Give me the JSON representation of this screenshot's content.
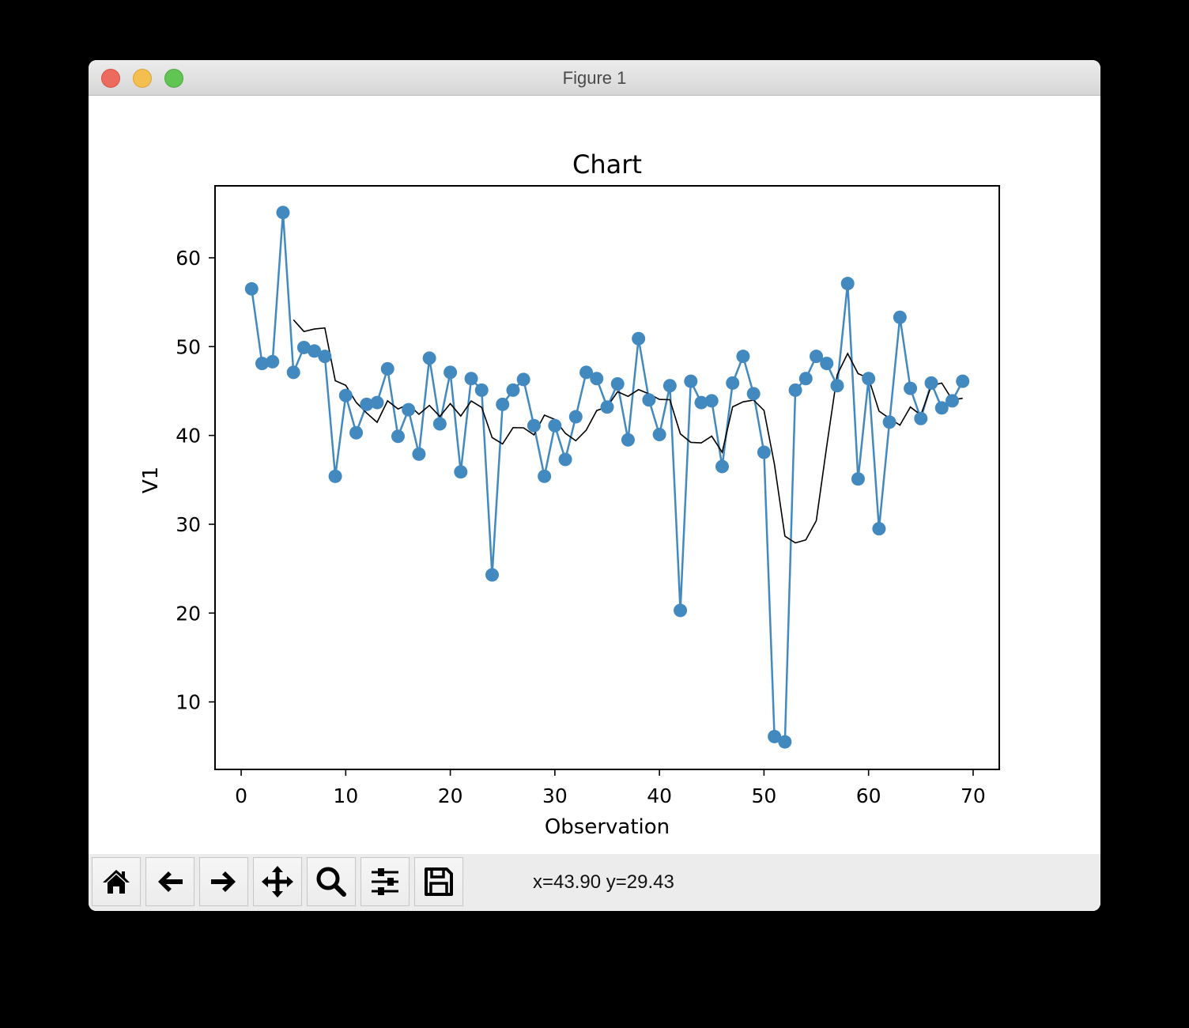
{
  "window": {
    "title": "Figure 1",
    "controls": [
      "close",
      "minimize",
      "maximize"
    ]
  },
  "toolbar": {
    "buttons": [
      {
        "name": "home",
        "icon": "home-icon"
      },
      {
        "name": "back",
        "icon": "arrow-left-icon"
      },
      {
        "name": "forward",
        "icon": "arrow-right-icon"
      },
      {
        "name": "pan",
        "icon": "move-icon"
      },
      {
        "name": "zoom",
        "icon": "magnifier-icon"
      },
      {
        "name": "configure-subplots",
        "icon": "sliders-icon"
      },
      {
        "name": "save",
        "icon": "floppy-disk-icon"
      }
    ],
    "coords": "x=43.90 y=29.43"
  },
  "colors": {
    "series": "#4289c0",
    "moving_average": "#000000",
    "titlebar": "#e3e3e3",
    "toolbar": "#ececec"
  },
  "chart_data": {
    "type": "line",
    "title": "Chart",
    "xlabel": "Observation",
    "ylabel": "V1",
    "xlim": [
      -2.5,
      72.5
    ],
    "ylim": [
      2.4,
      68.1
    ],
    "xticks": [
      0,
      10,
      20,
      30,
      40,
      50,
      60,
      70
    ],
    "yticks": [
      10,
      20,
      30,
      40,
      50,
      60
    ],
    "grid": false,
    "legend": null,
    "series": [
      {
        "name": "V1",
        "style": "line+markers",
        "color": "#4289c0",
        "x": [
          1,
          2,
          3,
          4,
          5,
          6,
          7,
          8,
          9,
          10,
          11,
          12,
          13,
          14,
          15,
          16,
          17,
          18,
          19,
          20,
          21,
          22,
          23,
          24,
          25,
          26,
          27,
          28,
          29,
          30,
          31,
          32,
          33,
          34,
          35,
          36,
          37,
          38,
          39,
          40,
          41,
          42,
          43,
          44,
          45,
          46,
          47,
          48,
          49,
          50,
          51,
          52,
          53,
          54,
          55,
          56,
          57,
          58,
          59,
          60,
          61,
          62,
          63,
          64,
          65,
          66,
          67,
          68,
          69
        ],
        "values": [
          56.5,
          48.1,
          48.3,
          65.1,
          47.1,
          49.9,
          49.5,
          48.9,
          35.4,
          44.5,
          40.3,
          43.5,
          43.7,
          47.5,
          39.9,
          42.9,
          37.9,
          48.7,
          41.3,
          47.1,
          35.9,
          46.4,
          45.1,
          24.3,
          43.5,
          45.1,
          46.3,
          41.1,
          35.4,
          41.1,
          37.3,
          42.1,
          47.1,
          46.4,
          43.2,
          45.8,
          39.5,
          50.9,
          44.0,
          40.1,
          45.6,
          20.3,
          46.1,
          43.7,
          43.9,
          36.5,
          45.9,
          48.9,
          44.7,
          38.1,
          6.1,
          5.5,
          45.1,
          46.4,
          48.9,
          48.1,
          45.6,
          57.1,
          35.1,
          46.4,
          29.5,
          41.5,
          53.3,
          45.3,
          41.9,
          45.9,
          43.1,
          43.9,
          46.1
        ]
      },
      {
        "name": "Moving average (window 5)",
        "style": "line",
        "color": "#000000",
        "window": 5,
        "start_x": 5
      }
    ]
  }
}
